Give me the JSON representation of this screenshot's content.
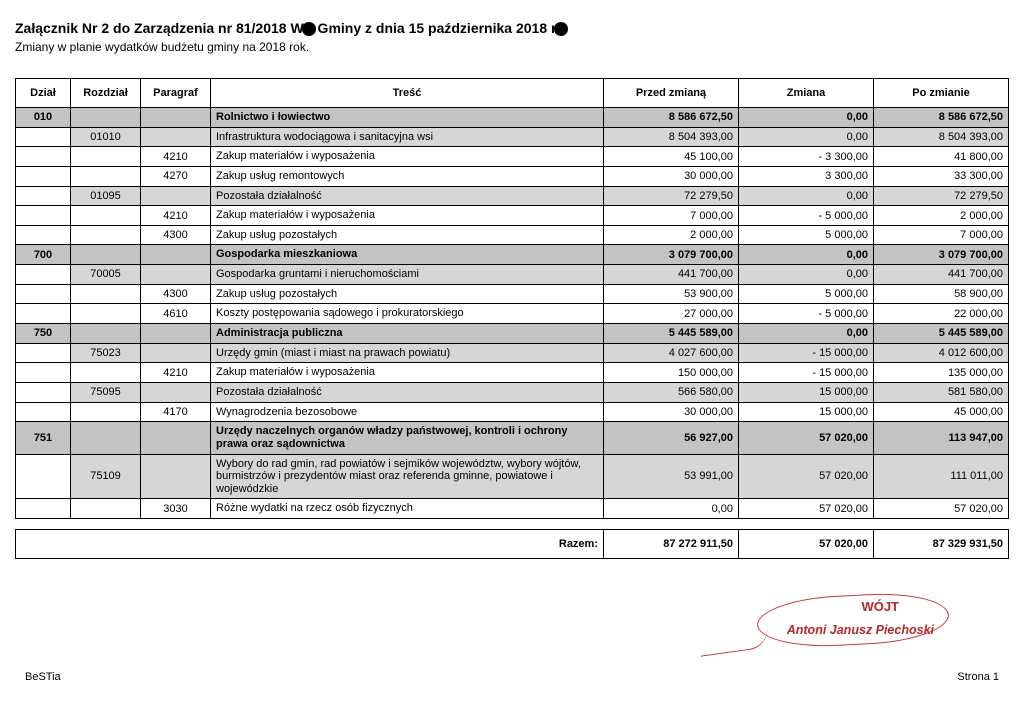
{
  "header": {
    "title_pre": "Załącznik Nr 2 do Zarządzenia nr 81/2018 W",
    "title_mid": " Gminy z dnia 15 października 2018 r",
    "subtitle": "Zmiany w planie wydatków budżetu gminy na 2018 rok."
  },
  "columns": {
    "dzial": "Dział",
    "rozdzial": "Rozdział",
    "paragraf": "Paragraf",
    "tresc": "Treść",
    "przed": "Przed zmianą",
    "zmiana": "Zmiana",
    "po": "Po zmianie"
  },
  "rows": [
    {
      "level": "d",
      "dzial": "010",
      "rozdz": "",
      "para": "",
      "tresc": "Rolnictwo i łowiectwo",
      "przed": "8 586 672,50",
      "zm": "0,00",
      "po": "8 586 672,50"
    },
    {
      "level": "r",
      "dzial": "",
      "rozdz": "01010",
      "para": "",
      "tresc": "Infrastruktura wodociągowa i sanitacyjna wsi",
      "przed": "8 504 393,00",
      "zm": "0,00",
      "po": "8 504 393,00"
    },
    {
      "level": "p",
      "dzial": "",
      "rozdz": "",
      "para": "4210",
      "tresc": "Zakup materiałów i wyposażenia",
      "przed": "45 100,00",
      "zm": "- 3 300,00",
      "po": "41 800,00"
    },
    {
      "level": "p",
      "dzial": "",
      "rozdz": "",
      "para": "4270",
      "tresc": "Zakup usług remontowych",
      "przed": "30 000,00",
      "zm": "3 300,00",
      "po": "33 300,00"
    },
    {
      "level": "r",
      "dzial": "",
      "rozdz": "01095",
      "para": "",
      "tresc": "Pozostała działalność",
      "przed": "72 279,50",
      "zm": "0,00",
      "po": "72 279,50"
    },
    {
      "level": "p",
      "dzial": "",
      "rozdz": "",
      "para": "4210",
      "tresc": "Zakup materiałów i wyposażenia",
      "przed": "7 000,00",
      "zm": "- 5 000,00",
      "po": "2 000,00"
    },
    {
      "level": "p",
      "dzial": "",
      "rozdz": "",
      "para": "4300",
      "tresc": "Zakup usług pozostałych",
      "przed": "2 000,00",
      "zm": "5 000,00",
      "po": "7 000,00"
    },
    {
      "level": "d",
      "dzial": "700",
      "rozdz": "",
      "para": "",
      "tresc": "Gospodarka mieszkaniowa",
      "przed": "3 079 700,00",
      "zm": "0,00",
      "po": "3 079 700,00"
    },
    {
      "level": "r",
      "dzial": "",
      "rozdz": "70005",
      "para": "",
      "tresc": "Gospodarka gruntami i nieruchomościami",
      "przed": "441 700,00",
      "zm": "0,00",
      "po": "441 700,00"
    },
    {
      "level": "p",
      "dzial": "",
      "rozdz": "",
      "para": "4300",
      "tresc": "Zakup usług pozostałych",
      "przed": "53 900,00",
      "zm": "5 000,00",
      "po": "58 900,00"
    },
    {
      "level": "p",
      "dzial": "",
      "rozdz": "",
      "para": "4610",
      "tresc": "Koszty postępowania sądowego i prokuratorskiego",
      "przed": "27 000,00",
      "zm": "- 5 000,00",
      "po": "22 000,00"
    },
    {
      "level": "d",
      "dzial": "750",
      "rozdz": "",
      "para": "",
      "tresc": "Administracja publiczna",
      "przed": "5 445 589,00",
      "zm": "0,00",
      "po": "5 445 589,00"
    },
    {
      "level": "r",
      "dzial": "",
      "rozdz": "75023",
      "para": "",
      "tresc": "Urzędy gmin (miast i miast na prawach powiatu)",
      "przed": "4 027 600,00",
      "zm": "- 15 000,00",
      "po": "4 012 600,00"
    },
    {
      "level": "p",
      "dzial": "",
      "rozdz": "",
      "para": "4210",
      "tresc": "Zakup materiałów i wyposażenia",
      "przed": "150 000,00",
      "zm": "- 15 000,00",
      "po": "135 000,00"
    },
    {
      "level": "r",
      "dzial": "",
      "rozdz": "75095",
      "para": "",
      "tresc": "Pozostała działalność",
      "przed": "566 580,00",
      "zm": "15 000,00",
      "po": "581 580,00"
    },
    {
      "level": "p",
      "dzial": "",
      "rozdz": "",
      "para": "4170",
      "tresc": "Wynagrodzenia bezosobowe",
      "przed": "30 000,00",
      "zm": "15 000,00",
      "po": "45 000,00"
    },
    {
      "level": "d",
      "dzial": "751",
      "rozdz": "",
      "para": "",
      "tresc": "Urzędy naczelnych organów władzy państwowej, kontroli i ochrony prawa oraz sądownictwa",
      "przed": "56 927,00",
      "zm": "57 020,00",
      "po": "113 947,00"
    },
    {
      "level": "r",
      "dzial": "",
      "rozdz": "75109",
      "para": "",
      "tresc": "Wybory do rad gmin, rad powiatów i sejmików województw, wybory wójtów, burmistrzów i prezydentów miast oraz referenda gminne, powiatowe i wojewódzkie",
      "przed": "53 991,00",
      "zm": "57 020,00",
      "po": "111 011,00"
    },
    {
      "level": "p",
      "dzial": "",
      "rozdz": "",
      "para": "3030",
      "tresc": "Różne wydatki na rzecz osób fizycznych",
      "przed": "0,00",
      "zm": "57 020,00",
      "po": "57 020,00"
    }
  ],
  "totals": {
    "label": "Razem:",
    "przed": "87 272 911,50",
    "zm": "57 020,00",
    "po": "87 329 931,50"
  },
  "signature": {
    "role": "WÓJT",
    "name": "Antoni Janusz Piechoski"
  },
  "footer": {
    "left": "BeSTia",
    "right": "Strona 1"
  },
  "style": {
    "dzial_bg": "#c3c3c3",
    "rozdz_bg": "#d6d6d6",
    "sig_color": "#b02a2a"
  }
}
